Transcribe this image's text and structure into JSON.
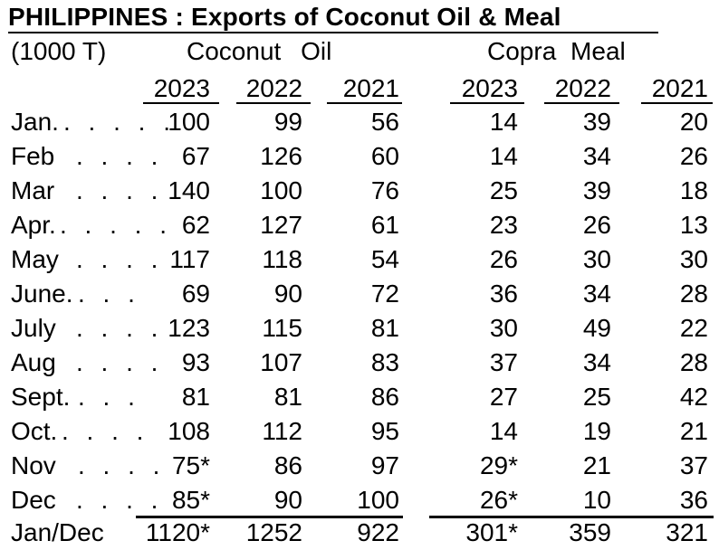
{
  "title": "PHILIPPINES :  Exports of Coconut Oil & Meal",
  "unit": "(1000 T)",
  "groups": {
    "oil": "Coconut Oil",
    "meal": "Copra Meal"
  },
  "years": [
    "2023",
    "2022",
    "2021",
    "2023",
    "2022",
    "2021"
  ],
  "dots_long": ". . . . .",
  "dots_short": ". . . .",
  "rows": [
    {
      "month": "Jan.",
      "dots": ". . . . .",
      "values": [
        "100",
        "99",
        "56",
        "14",
        "39",
        "20"
      ]
    },
    {
      "month": "Feb",
      "dots": ". . . .",
      "values": [
        "67",
        "126",
        "60",
        "14",
        "34",
        "26"
      ]
    },
    {
      "month": "Mar",
      "dots": ". . . .",
      "values": [
        "140",
        "100",
        "76",
        "25",
        "39",
        "18"
      ]
    },
    {
      "month": "Apr.",
      "dots": ". . . . .",
      "values": [
        "62",
        "127",
        "61",
        "23",
        "26",
        "13"
      ]
    },
    {
      "month": "May",
      "dots": ". . . .",
      "values": [
        "117",
        "118",
        "54",
        "26",
        "30",
        "30"
      ]
    },
    {
      "month": "June.",
      "dots": ". . .",
      "values": [
        "69",
        "90",
        "72",
        "36",
        "34",
        "28"
      ]
    },
    {
      "month": "July",
      "dots": ". . . .",
      "values": [
        "123",
        "115",
        "81",
        "30",
        "49",
        "22"
      ]
    },
    {
      "month": "Aug",
      "dots": ". . . .",
      "values": [
        "93",
        "107",
        "83",
        "37",
        "34",
        "28"
      ]
    },
    {
      "month": "Sept.",
      "dots": ". . .",
      "values": [
        "81",
        "81",
        "86",
        "27",
        "25",
        "42"
      ]
    },
    {
      "month": "Oct.",
      "dots": ". . . .",
      "values": [
        "108",
        "112",
        "95",
        "14",
        "19",
        "21"
      ]
    },
    {
      "month": "Nov",
      "dots": ". . . .",
      "values": [
        "75*",
        "86",
        "97",
        "29*",
        "21",
        "37"
      ]
    },
    {
      "month": "Dec",
      "dots": ". . . .",
      "values": [
        "85*",
        "90",
        "100",
        "26*",
        "10",
        "36"
      ]
    }
  ],
  "total": {
    "label": "Jan/Dec",
    "values": [
      "1120*",
      "1252",
      "922",
      "301*",
      "359",
      "321"
    ]
  }
}
